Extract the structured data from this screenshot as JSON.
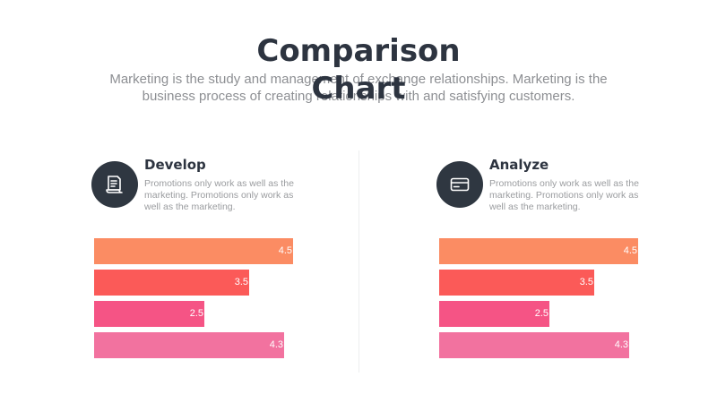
{
  "header": {
    "title_line1": "Comparison",
    "title_line2": "Chart",
    "subtitle": "Marketing is the study and management of exchange relationships. Marketing is the business process of creating relationships with and satisfying customers."
  },
  "panels": [
    {
      "heading": "Develop",
      "icon": "document-icon",
      "text": "Promotions only work as well as the marketing. Promotions only work as well as the marketing."
    },
    {
      "heading": "Analyze",
      "icon": "credit-card-icon",
      "text": "Promotions only work as well as the marketing. Promotions only work as well as the marketing."
    }
  ],
  "colors": {
    "dark": "#2f3741",
    "bar_colors": [
      "#fb8c63",
      "#fb5a58",
      "#f55485",
      "#f2729f"
    ]
  },
  "chart_data": [
    {
      "type": "bar",
      "orientation": "horizontal",
      "categories": [
        "",
        "",
        "",
        ""
      ],
      "values": [
        4.5,
        3.5,
        2.5,
        4.3
      ],
      "data_labels": [
        "4.5",
        "3.5",
        "2.5",
        "4.3"
      ],
      "xlim": [
        0,
        4.5
      ],
      "grid": false,
      "title": "",
      "xlabel": "",
      "ylabel": ""
    },
    {
      "type": "bar",
      "orientation": "horizontal",
      "categories": [
        "",
        "",
        "",
        ""
      ],
      "values": [
        4.5,
        3.5,
        2.5,
        4.3
      ],
      "data_labels": [
        "4.5",
        "3.5",
        "2.5",
        "4.3"
      ],
      "xlim": [
        0,
        4.5
      ],
      "grid": false,
      "title": "",
      "xlabel": "",
      "ylabel": ""
    }
  ]
}
